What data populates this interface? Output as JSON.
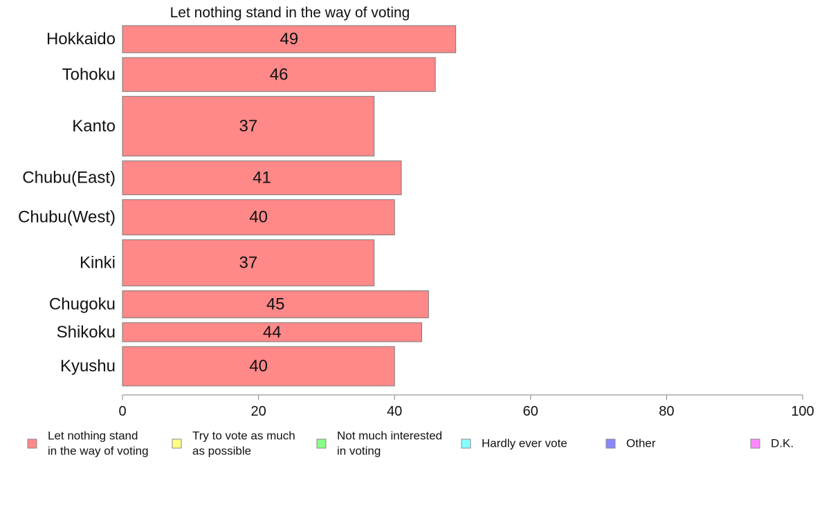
{
  "chart_data": {
    "type": "bar",
    "orientation": "horizontal",
    "title": "Let nothing stand in the way of voting",
    "categories": [
      "Hokkaido",
      "Tohoku",
      "Kanto",
      "Chubu(East)",
      "Chubu(West)",
      "Kinki",
      "Chugoku",
      "Shikoku",
      "Kyushu"
    ],
    "relative_sample_weights": [
      1.0,
      1.25,
      2.2,
      1.25,
      1.3,
      1.7,
      1.0,
      0.7,
      1.45
    ],
    "series": [
      {
        "name": "Let nothing stand in the way of voting",
        "values": [
          49,
          46,
          37,
          41,
          40,
          37,
          45,
          44,
          40
        ]
      }
    ],
    "data_labels": [
      "49",
      "46",
      "37",
      "41",
      "40",
      "37",
      "45",
      "44",
      "40"
    ],
    "xlim": [
      0,
      100
    ],
    "x_ticks": [
      0,
      20,
      40,
      60,
      80,
      100
    ],
    "x_tick_labels": [
      "0",
      "20",
      "40",
      "60",
      "80",
      "100"
    ],
    "grid": false,
    "legend_position": "bottom",
    "legend": [
      {
        "lines": [
          "Let nothing stand",
          "in the way of voting"
        ],
        "color": "#ff8888"
      },
      {
        "lines": [
          "Try to vote as much",
          "as possible"
        ],
        "color": "#ffff88"
      },
      {
        "lines": [
          "Not much interested",
          "in voting"
        ],
        "color": "#88ff88"
      },
      {
        "lines": [
          "Hardly ever vote"
        ],
        "color": "#88ffff"
      },
      {
        "lines": [
          "Other"
        ],
        "color": "#8888ff"
      },
      {
        "lines": [
          "D.K."
        ],
        "color": "#ff88ff"
      }
    ],
    "bar_color": "#ff8888"
  }
}
